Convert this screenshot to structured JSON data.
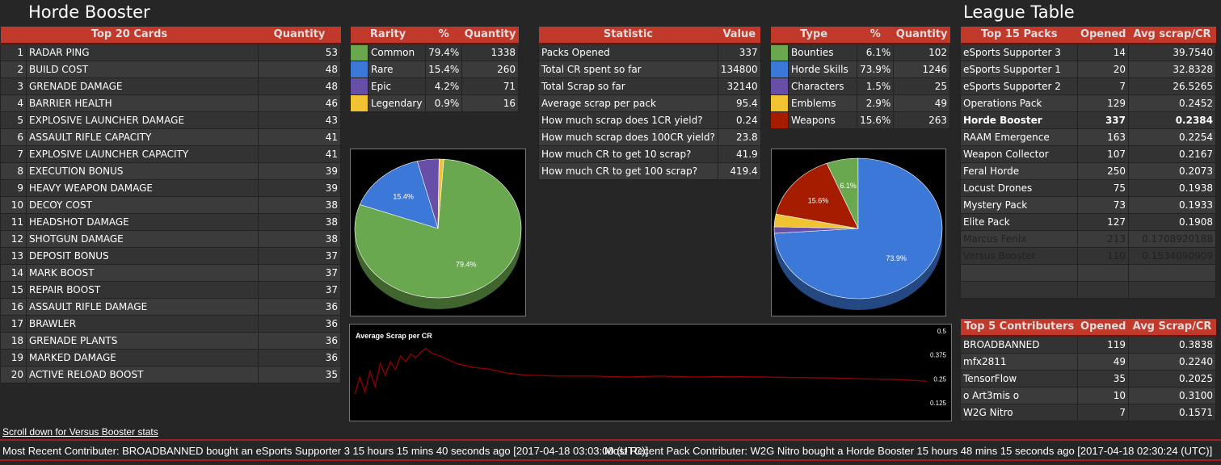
{
  "header": {
    "title_left": "Horde Booster",
    "title_right": "League Table"
  },
  "colors": {
    "header_red": "#c0392b",
    "common": "#6aa84f",
    "rare": "#3c78d8",
    "epic": "#674ea7",
    "legendary": "#f1c232",
    "weapons": "#a61c00"
  },
  "top_cards": {
    "headers": [
      "Top 20 Cards",
      "Quantity"
    ],
    "rows": [
      {
        "n": "1",
        "name": "RADAR PING",
        "qty": "53"
      },
      {
        "n": "2",
        "name": "BUILD COST",
        "qty": "48"
      },
      {
        "n": "3",
        "name": "GRENADE DAMAGE",
        "qty": "48"
      },
      {
        "n": "4",
        "name": "BARRIER HEALTH",
        "qty": "46"
      },
      {
        "n": "5",
        "name": "EXPLOSIVE LAUNCHER DAMAGE",
        "qty": "43"
      },
      {
        "n": "6",
        "name": "ASSAULT RIFLE CAPACITY",
        "qty": "41"
      },
      {
        "n": "7",
        "name": "EXPLOSIVE LAUNCHER CAPACITY",
        "qty": "41"
      },
      {
        "n": "8",
        "name": "EXECUTION BONUS",
        "qty": "39"
      },
      {
        "n": "9",
        "name": "HEAVY WEAPON DAMAGE",
        "qty": "39"
      },
      {
        "n": "10",
        "name": "DECOY COST",
        "qty": "38"
      },
      {
        "n": "11",
        "name": "HEADSHOT DAMAGE",
        "qty": "38"
      },
      {
        "n": "12",
        "name": "SHOTGUN DAMAGE",
        "qty": "38"
      },
      {
        "n": "13",
        "name": "DEPOSIT BONUS",
        "qty": "37"
      },
      {
        "n": "14",
        "name": "MARK BOOST",
        "qty": "37"
      },
      {
        "n": "15",
        "name": "REPAIR BOOST",
        "qty": "37"
      },
      {
        "n": "16",
        "name": "ASSAULT RIFLE DAMAGE",
        "qty": "36"
      },
      {
        "n": "17",
        "name": "BRAWLER",
        "qty": "36"
      },
      {
        "n": "18",
        "name": "GRENADE PLANTS",
        "qty": "36"
      },
      {
        "n": "19",
        "name": "MARKED DAMAGE",
        "qty": "36"
      },
      {
        "n": "20",
        "name": "ACTIVE RELOAD BOOST",
        "qty": "35"
      }
    ]
  },
  "rarity": {
    "headers": [
      "Rarity",
      "%",
      "Quantity"
    ],
    "rows": [
      {
        "name": "Common",
        "pct": "79.4%",
        "qty": "1338",
        "color": "#6aa84f"
      },
      {
        "name": "Rare",
        "pct": "15.4%",
        "qty": "260",
        "color": "#3c78d8"
      },
      {
        "name": "Epic",
        "pct": "4.2%",
        "qty": "71",
        "color": "#674ea7"
      },
      {
        "name": "Legendary",
        "pct": "0.9%",
        "qty": "16",
        "color": "#f1c232"
      }
    ]
  },
  "stats": {
    "headers": [
      "Statistic",
      "Value"
    ],
    "rows": [
      {
        "name": "Packs Opened",
        "value": "337"
      },
      {
        "name": "Total CR spent so far",
        "value": "134800"
      },
      {
        "name": "Total Scrap so far",
        "value": "32140"
      },
      {
        "name": "Average scrap per pack",
        "value": "95.4"
      },
      {
        "name": "How much scrap does 1CR yield?",
        "value": "0.24"
      },
      {
        "name": "How much scrap does 100CR yield?",
        "value": "23.8"
      },
      {
        "name": "How much CR to get 10 scrap?",
        "value": "41.9"
      },
      {
        "name": "How much CR to get 100 scrap?",
        "value": "419.4"
      }
    ]
  },
  "types": {
    "headers": [
      "Type",
      "%",
      "Quantity"
    ],
    "rows": [
      {
        "name": "Bounties",
        "pct": "6.1%",
        "qty": "102",
        "color": "#6aa84f"
      },
      {
        "name": "Horde Skills",
        "pct": "73.9%",
        "qty": "1246",
        "color": "#3c78d8"
      },
      {
        "name": "Characters",
        "pct": "1.5%",
        "qty": "25",
        "color": "#674ea7"
      },
      {
        "name": "Emblems",
        "pct": "2.9%",
        "qty": "49",
        "color": "#f1c232"
      },
      {
        "name": "Weapons",
        "pct": "15.6%",
        "qty": "263",
        "color": "#a61c00"
      }
    ]
  },
  "league": {
    "headers": [
      "Top 15 Packs",
      "Opened",
      "Avg scrap/CR"
    ],
    "rows": [
      {
        "name": "eSports Supporter 3",
        "opened": "14",
        "avg": "39.7540",
        "style": ""
      },
      {
        "name": "eSports Supporter 1",
        "opened": "20",
        "avg": "32.8328",
        "style": ""
      },
      {
        "name": "eSports Supporter 2",
        "opened": "7",
        "avg": "26.5265",
        "style": ""
      },
      {
        "name": "Operations Pack",
        "opened": "129",
        "avg": "0.2452",
        "style": ""
      },
      {
        "name": "Horde Booster",
        "opened": "337",
        "avg": "0.2384",
        "style": "bold"
      },
      {
        "name": "RAAM Emergence",
        "opened": "163",
        "avg": "0.2254",
        "style": ""
      },
      {
        "name": "Weapon Collector",
        "opened": "107",
        "avg": "0.2167",
        "style": ""
      },
      {
        "name": "Feral Horde",
        "opened": "250",
        "avg": "0.2073",
        "style": ""
      },
      {
        "name": "Locust Drones",
        "opened": "75",
        "avg": "0.1938",
        "style": ""
      },
      {
        "name": "Mystery Pack",
        "opened": "73",
        "avg": "0.1933",
        "style": ""
      },
      {
        "name": "Elite Pack",
        "opened": "127",
        "avg": "0.1908",
        "style": ""
      },
      {
        "name": "Marcus Fenix",
        "opened": "213",
        "avg": "0.1708920188",
        "style": "dim"
      },
      {
        "name": "Versus Booster",
        "opened": "110",
        "avg": "0.1534090909",
        "style": "dim"
      },
      {
        "name": "",
        "opened": "",
        "avg": "",
        "style": ""
      },
      {
        "name": "",
        "opened": "",
        "avg": "",
        "style": ""
      }
    ]
  },
  "contributors": {
    "headers": [
      "Top 5 Contributers",
      "Opened",
      "Avg Scrap/CR"
    ],
    "rows": [
      {
        "name": "BROADBANNED",
        "opened": "119",
        "avg": "0.3838"
      },
      {
        "name": "mfx2811",
        "opened": "49",
        "avg": "0.2240"
      },
      {
        "name": "TensorFlow",
        "opened": "35",
        "avg": "0.2025"
      },
      {
        "name": "o Art3mis o",
        "opened": "10",
        "avg": "0.3100"
      },
      {
        "name": "W2G Nitro",
        "opened": "7",
        "avg": "0.1571"
      }
    ]
  },
  "links": {
    "versus": "Scroll down for Versus Booster stats"
  },
  "ticker": {
    "msg1": "Most Recent Contributer: BROADBANNED bought an eSports Supporter 3 15 hours 15 mins 40 seconds ago [2017-04-18 03:03:00 (UTC)]",
    "msg2": "Most Recent Pack Contributer: W2G Nitro bought a Horde Booster 15 hours 48 mins 15 seconds ago [2017-04-18 02:30:24 (UTC)]"
  },
  "chart_data": [
    {
      "type": "pie",
      "title": "",
      "labels": [
        "Common",
        "Rare",
        "Epic",
        "Legendary"
      ],
      "values": [
        79.4,
        15.4,
        4.2,
        0.9
      ],
      "colors": [
        "#6aa84f",
        "#3c78d8",
        "#674ea7",
        "#f1c232"
      ],
      "slice_labels": [
        "79.4%",
        "15.4%",
        "",
        ""
      ]
    },
    {
      "type": "pie",
      "title": "",
      "labels": [
        "Bounties",
        "Horde Skills",
        "Characters",
        "Emblems",
        "Weapons"
      ],
      "values": [
        6.1,
        73.9,
        1.5,
        2.9,
        15.6
      ],
      "colors": [
        "#6aa84f",
        "#3c78d8",
        "#674ea7",
        "#f1c232",
        "#a61c00"
      ],
      "slice_labels": [
        "6.1%",
        "73.9%",
        "",
        "",
        "15.6%"
      ]
    },
    {
      "type": "line",
      "title": "Average Scrap per CR",
      "ylim": [
        0.125,
        0.5
      ],
      "yticks": [
        "0.5",
        "0.375",
        "0.25",
        "0.125"
      ],
      "color": "#8b0000",
      "x": [
        0,
        3,
        6,
        9,
        12,
        15,
        18,
        21,
        24,
        27,
        30,
        33,
        36,
        39,
        42,
        45,
        50,
        55,
        60,
        65,
        70,
        80,
        90,
        100,
        120,
        140,
        160,
        180,
        200,
        220,
        240,
        260,
        280,
        300,
        320,
        337
      ],
      "values": [
        0.17,
        0.26,
        0.18,
        0.29,
        0.21,
        0.33,
        0.27,
        0.34,
        0.3,
        0.37,
        0.34,
        0.38,
        0.36,
        0.39,
        0.41,
        0.385,
        0.37,
        0.35,
        0.33,
        0.32,
        0.31,
        0.3,
        0.28,
        0.27,
        0.265,
        0.265,
        0.26,
        0.265,
        0.26,
        0.262,
        0.26,
        0.257,
        0.255,
        0.25,
        0.247,
        0.238
      ]
    }
  ]
}
